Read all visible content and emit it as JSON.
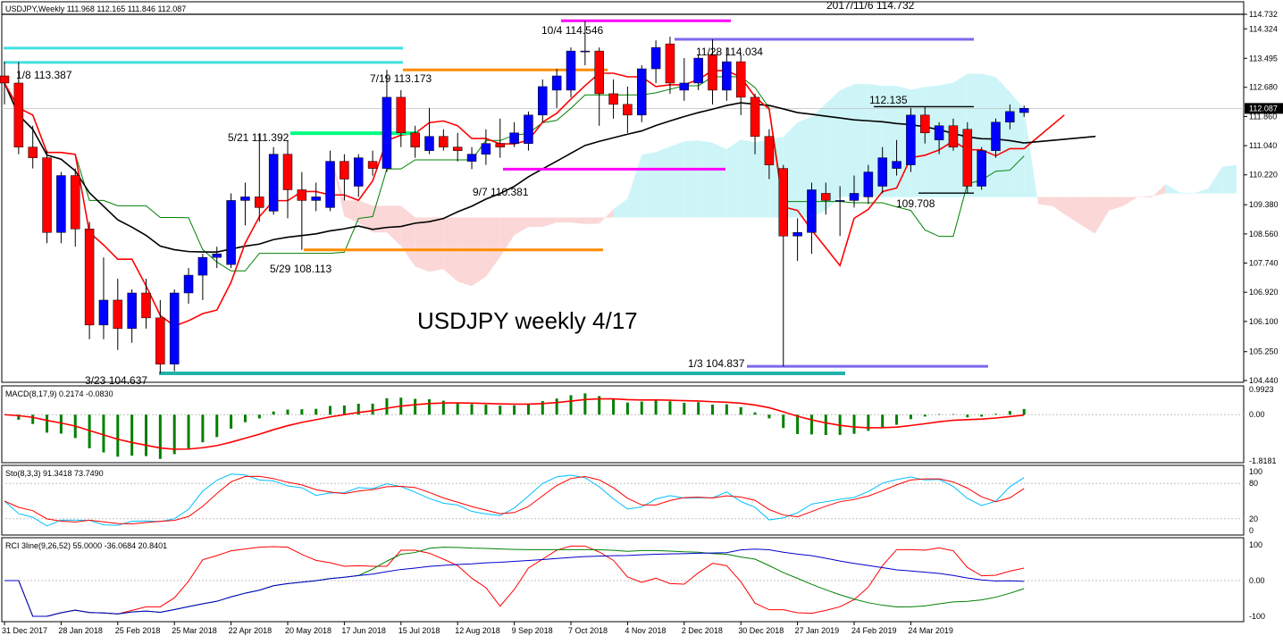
{
  "chart_data": {
    "type": "candlestick",
    "symbol_header": "USDJPY,Weekly  111.968 112.165 111.846 112.087",
    "watermark_title": "USDJPY weekly 4/17",
    "top_label": "2017/11/6 114.732",
    "current_price": "112.087",
    "price_axis": {
      "ticks": [
        "114.732",
        "114.324",
        "113.495",
        "112.680",
        "111.860",
        "111.040",
        "110.220",
        "109.380",
        "108.560",
        "107.740",
        "106.920",
        "106.100",
        "105.250",
        "104.440"
      ],
      "current_label": "112.087",
      "ylim": [
        104.44,
        114.8
      ]
    },
    "x_axis": {
      "ticks": [
        "31 Dec 2017",
        "28 Jan 2018",
        "25 Feb 2018",
        "25 Mar 2018",
        "22 Apr 2018",
        "20 May 2018",
        "17 Jun 2018",
        "15 Jul 2018",
        "12 Aug 2018",
        "9 Sep 2018",
        "7 Oct 2018",
        "4 Nov 2018",
        "2 Dec 2018",
        "30 Dec 2018",
        "27 Jan 2019",
        "24 Feb 2019",
        "24 Mar 2019"
      ]
    },
    "annotations": [
      {
        "text": "1/8 113.387"
      },
      {
        "text": "5/21 111.392"
      },
      {
        "text": "7/19 113.173"
      },
      {
        "text": "10/4 114.546"
      },
      {
        "text": "11/28 114.034"
      },
      {
        "text": "9/7 110.381"
      },
      {
        "text": "5/29 108.113"
      },
      {
        "text": "3/23 104.637"
      },
      {
        "text": "1/3 104.837"
      },
      {
        "text": "112.135"
      },
      {
        "text": "109.708"
      }
    ],
    "candles": [
      {
        "o": 113.0,
        "h": 113.4,
        "l": 112.2,
        "c": 112.8
      },
      {
        "o": 112.8,
        "h": 113.39,
        "l": 110.8,
        "c": 111.0
      },
      {
        "o": 111.0,
        "h": 111.6,
        "l": 110.4,
        "c": 110.7
      },
      {
        "o": 110.7,
        "h": 110.9,
        "l": 108.3,
        "c": 108.6
      },
      {
        "o": 108.6,
        "h": 110.3,
        "l": 108.3,
        "c": 110.2
      },
      {
        "o": 110.2,
        "h": 110.4,
        "l": 108.2,
        "c": 108.7
      },
      {
        "o": 108.7,
        "h": 108.9,
        "l": 105.6,
        "c": 106.0
      },
      {
        "o": 106.0,
        "h": 107.9,
        "l": 105.6,
        "c": 106.7
      },
      {
        "o": 106.7,
        "h": 107.3,
        "l": 105.3,
        "c": 105.9
      },
      {
        "o": 105.9,
        "h": 107.0,
        "l": 105.5,
        "c": 106.9
      },
      {
        "o": 106.9,
        "h": 107.3,
        "l": 105.9,
        "c": 106.2
      },
      {
        "o": 106.2,
        "h": 106.7,
        "l": 104.64,
        "c": 104.9
      },
      {
        "o": 104.9,
        "h": 107.0,
        "l": 104.7,
        "c": 106.9
      },
      {
        "o": 106.9,
        "h": 107.6,
        "l": 106.6,
        "c": 107.4
      },
      {
        "o": 107.4,
        "h": 108.0,
        "l": 106.7,
        "c": 107.9
      },
      {
        "o": 107.9,
        "h": 108.2,
        "l": 107.6,
        "c": 108.0
      },
      {
        "o": 107.7,
        "h": 109.7,
        "l": 107.6,
        "c": 109.5
      },
      {
        "o": 109.5,
        "h": 110.0,
        "l": 108.8,
        "c": 109.6
      },
      {
        "o": 109.6,
        "h": 111.39,
        "l": 108.9,
        "c": 109.3
      },
      {
        "o": 109.2,
        "h": 111.0,
        "l": 109.1,
        "c": 110.8
      },
      {
        "o": 110.8,
        "h": 111.2,
        "l": 109.0,
        "c": 109.8
      },
      {
        "o": 109.8,
        "h": 110.3,
        "l": 108.11,
        "c": 109.5
      },
      {
        "o": 109.5,
        "h": 110.0,
        "l": 109.2,
        "c": 109.6
      },
      {
        "o": 109.3,
        "h": 110.9,
        "l": 109.2,
        "c": 110.6
      },
      {
        "o": 110.6,
        "h": 110.8,
        "l": 109.5,
        "c": 110.1
      },
      {
        "o": 109.9,
        "h": 110.8,
        "l": 109.6,
        "c": 110.7
      },
      {
        "o": 110.6,
        "h": 110.9,
        "l": 110.2,
        "c": 110.4
      },
      {
        "o": 110.4,
        "h": 113.17,
        "l": 110.3,
        "c": 112.4
      },
      {
        "o": 112.4,
        "h": 112.6,
        "l": 111.0,
        "c": 111.4
      },
      {
        "o": 111.4,
        "h": 111.6,
        "l": 110.7,
        "c": 111.0
      },
      {
        "o": 110.9,
        "h": 112.1,
        "l": 110.8,
        "c": 111.3
      },
      {
        "o": 111.3,
        "h": 111.5,
        "l": 110.9,
        "c": 111.0
      },
      {
        "o": 111.0,
        "h": 111.4,
        "l": 110.6,
        "c": 110.9
      },
      {
        "o": 110.6,
        "h": 111.0,
        "l": 110.38,
        "c": 110.8
      },
      {
        "o": 110.8,
        "h": 111.5,
        "l": 110.5,
        "c": 111.1
      },
      {
        "o": 111.1,
        "h": 111.8,
        "l": 110.7,
        "c": 111.0
      },
      {
        "o": 111.1,
        "h": 111.7,
        "l": 111.0,
        "c": 111.4
      },
      {
        "o": 111.1,
        "h": 112.0,
        "l": 110.9,
        "c": 111.9
      },
      {
        "o": 111.9,
        "h": 112.9,
        "l": 111.7,
        "c": 112.7
      },
      {
        "o": 112.6,
        "h": 113.2,
        "l": 112.1,
        "c": 113.0
      },
      {
        "o": 112.6,
        "h": 113.8,
        "l": 112.4,
        "c": 113.7
      },
      {
        "o": 113.7,
        "h": 114.55,
        "l": 113.3,
        "c": 113.7
      },
      {
        "o": 113.7,
        "h": 113.8,
        "l": 111.6,
        "c": 112.5
      },
      {
        "o": 112.5,
        "h": 112.9,
        "l": 111.8,
        "c": 112.2
      },
      {
        "o": 112.2,
        "h": 112.7,
        "l": 111.4,
        "c": 111.9
      },
      {
        "o": 111.9,
        "h": 113.3,
        "l": 111.7,
        "c": 113.2
      },
      {
        "o": 113.2,
        "h": 114.0,
        "l": 112.8,
        "c": 113.8
      },
      {
        "o": 113.9,
        "h": 114.1,
        "l": 112.5,
        "c": 112.8
      },
      {
        "o": 112.6,
        "h": 113.5,
        "l": 112.3,
        "c": 112.8
      },
      {
        "o": 112.8,
        "h": 113.6,
        "l": 112.6,
        "c": 113.5
      },
      {
        "o": 113.6,
        "h": 114.03,
        "l": 112.2,
        "c": 112.6
      },
      {
        "o": 112.6,
        "h": 113.8,
        "l": 112.3,
        "c": 113.4
      },
      {
        "o": 113.4,
        "h": 113.6,
        "l": 111.9,
        "c": 112.4
      },
      {
        "o": 112.4,
        "h": 112.5,
        "l": 110.8,
        "c": 111.3
      },
      {
        "o": 111.3,
        "h": 111.5,
        "l": 110.1,
        "c": 110.5
      },
      {
        "o": 110.4,
        "h": 110.5,
        "l": 104.84,
        "c": 108.5
      },
      {
        "o": 108.5,
        "h": 109.0,
        "l": 107.8,
        "c": 108.6
      },
      {
        "o": 108.6,
        "h": 110.0,
        "l": 108.0,
        "c": 109.8
      },
      {
        "o": 109.7,
        "h": 110.0,
        "l": 109.1,
        "c": 109.5
      },
      {
        "o": 109.5,
        "h": 109.9,
        "l": 108.5,
        "c": 109.5
      },
      {
        "o": 109.5,
        "h": 110.2,
        "l": 109.3,
        "c": 109.7
      },
      {
        "o": 109.6,
        "h": 110.5,
        "l": 109.4,
        "c": 110.3
      },
      {
        "o": 109.9,
        "h": 111.0,
        "l": 109.7,
        "c": 110.7
      },
      {
        "o": 110.4,
        "h": 111.2,
        "l": 110.2,
        "c": 110.6
      },
      {
        "o": 110.5,
        "h": 112.1,
        "l": 110.3,
        "c": 111.9
      },
      {
        "o": 111.9,
        "h": 112.14,
        "l": 111.1,
        "c": 111.4
      },
      {
        "o": 111.2,
        "h": 111.7,
        "l": 110.8,
        "c": 111.6
      },
      {
        "o": 111.6,
        "h": 111.8,
        "l": 110.9,
        "c": 111.0
      },
      {
        "o": 111.5,
        "h": 111.7,
        "l": 109.71,
        "c": 109.9
      },
      {
        "o": 109.9,
        "h": 111.0,
        "l": 109.8,
        "c": 110.9
      },
      {
        "o": 110.9,
        "h": 111.8,
        "l": 110.7,
        "c": 111.7
      },
      {
        "o": 111.7,
        "h": 112.2,
        "l": 111.5,
        "c": 112.0
      },
      {
        "o": 111.97,
        "h": 112.17,
        "l": 111.85,
        "c": 112.09
      }
    ],
    "macd": {
      "title": "MACD(8,17,9) 0.2174 -0.0830",
      "ticks": [
        "0.9923",
        "0.00",
        "-1.8181"
      ],
      "range": [
        -1.8181,
        0.9923
      ]
    },
    "stoch": {
      "title": "Sto(8,3,3) 91.3418 73.7490",
      "ticks": [
        "100",
        "80",
        "20",
        "0"
      ],
      "range": [
        0,
        100
      ]
    },
    "rci": {
      "title": "RCI 3line(9,26,52) 55.0000 -36.0684 20.8401",
      "ticks": [
        "100",
        "0.00",
        "-100"
      ],
      "range": [
        -100,
        100
      ]
    },
    "colors": {
      "bull": "#0000ff",
      "bear": "#ff0000",
      "cloud_bull": "#cdf5f8",
      "cloud_bear": "#fbd7d7",
      "ma_long": "#000000",
      "tenkan": "#ff0000",
      "kijun": "#008000",
      "macd_hist": "#008000",
      "macd_signal": "#ff0000",
      "sto_main": "#00bfff",
      "sto_signal": "#ff0000",
      "rci_short": "#ff0000",
      "rci_mid": "#008000",
      "rci_long": "#0000cc",
      "cyan_line": "#40e0e0",
      "orange_line": "#ff8c00",
      "magenta_line": "#ff00ff",
      "purple_line": "#7b68ee",
      "green_line": "#00ff7f",
      "teal_line": "#20b2aa"
    }
  }
}
